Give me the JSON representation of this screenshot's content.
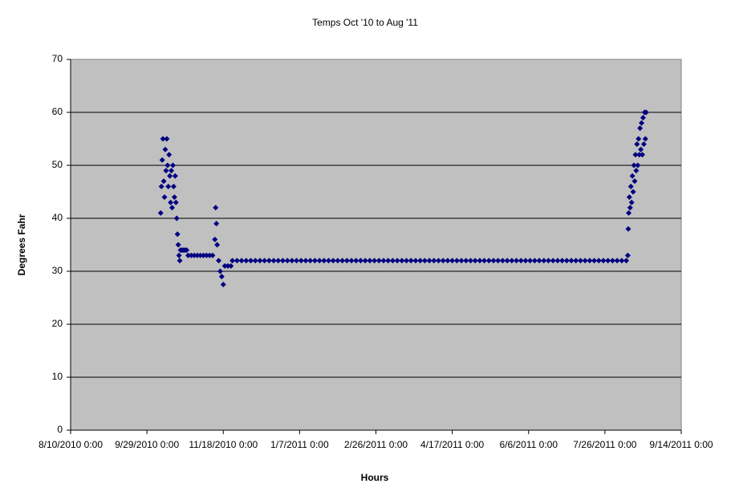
{
  "chart_data": {
    "type": "scatter",
    "title": "Temps Oct '10 to Aug '11",
    "x_label": "Hours",
    "y_label": "Degrees Fahr",
    "color": "#000080",
    "plot_background": "#c0c0c0",
    "grid": true,
    "xlim": [
      40400,
      40800
    ],
    "xticks": [
      {
        "value": 40400,
        "label": "8/10/2010 0:00"
      },
      {
        "value": 40450,
        "label": "9/29/2010 0:00"
      },
      {
        "value": 40500,
        "label": "11/18/2010 0:00"
      },
      {
        "value": 40550,
        "label": "1/7/2011 0:00"
      },
      {
        "value": 40600,
        "label": "2/26/2011 0:00"
      },
      {
        "value": 40650,
        "label": "4/17/2011 0:00"
      },
      {
        "value": 40700,
        "label": "6/6/2011 0:00"
      },
      {
        "value": 40750,
        "label": "7/26/2011 0:00"
      },
      {
        "value": 40800,
        "label": "9/14/2011 0:00"
      }
    ],
    "ylim": [
      0,
      70
    ],
    "yticks": [
      0,
      10,
      20,
      30,
      40,
      50,
      60,
      70
    ],
    "x": [
      40459,
      40459.5,
      40460,
      40460.5,
      40461,
      40461.5,
      40462,
      40462.5,
      40463,
      40463.5,
      40464,
      40464.5,
      40465,
      40465.5,
      40466,
      40466.5,
      40467,
      40467.5,
      40468,
      40468.5,
      40469,
      40469.5,
      40470,
      40470.5,
      40471,
      40471.5,
      40472,
      40473,
      40474,
      40475,
      40476,
      40477,
      40479,
      40481,
      40483,
      40485,
      40487,
      40489,
      40491,
      40493,
      40494.5,
      40495,
      40495.5,
      40496,
      40497,
      40498,
      40499,
      40500,
      40501,
      40503,
      40505,
      40506,
      40509,
      40512,
      40515,
      40518,
      40521,
      40524,
      40527,
      40530,
      40533,
      40536,
      40539,
      40542,
      40545,
      40548,
      40551,
      40554,
      40557,
      40560,
      40563,
      40566,
      40569,
      40572,
      40575,
      40578,
      40581,
      40584,
      40587,
      40590,
      40593,
      40596,
      40599,
      40602,
      40605,
      40608,
      40611,
      40614,
      40617,
      40620,
      40623,
      40626,
      40629,
      40632,
      40635,
      40638,
      40641,
      40644,
      40647,
      40650,
      40653,
      40656,
      40659,
      40662,
      40665,
      40668,
      40671,
      40674,
      40677,
      40680,
      40683,
      40686,
      40689,
      40692,
      40695,
      40698,
      40701,
      40704,
      40707,
      40710,
      40713,
      40716,
      40719,
      40722,
      40725,
      40728,
      40731,
      40734,
      40737,
      40740,
      40743,
      40746,
      40749,
      40752,
      40755,
      40758,
      40761,
      40764,
      40765,
      40765.3,
      40765.6,
      40766,
      40766.5,
      40767,
      40767.5,
      40768,
      40768.5,
      40769,
      40769.5,
      40770,
      40770.5,
      40771,
      40771.5,
      40772,
      40772.5,
      40773,
      40773.5,
      40774,
      40774.5,
      40775,
      40775.5,
      40776,
      40776.5,
      40777
    ],
    "values": [
      41,
      46,
      51,
      55,
      47,
      44,
      53,
      49,
      55,
      50,
      46,
      52,
      48,
      43,
      49,
      42,
      50,
      46,
      44,
      48,
      43,
      40,
      37,
      35,
      33,
      32,
      34,
      34,
      34,
      34,
      34,
      33,
      33,
      33,
      33,
      33,
      33,
      33,
      33,
      33,
      36,
      42,
      39,
      35,
      32,
      30,
      29,
      27.5,
      31,
      31,
      31,
      32,
      32,
      32,
      32,
      32,
      32,
      32,
      32,
      32,
      32,
      32,
      32,
      32,
      32,
      32,
      32,
      32,
      32,
      32,
      32,
      32,
      32,
      32,
      32,
      32,
      32,
      32,
      32,
      32,
      32,
      32,
      32,
      32,
      32,
      32,
      32,
      32,
      32,
      32,
      32,
      32,
      32,
      32,
      32,
      32,
      32,
      32,
      32,
      32,
      32,
      32,
      32,
      32,
      32,
      32,
      32,
      32,
      32,
      32,
      32,
      32,
      32,
      32,
      32,
      32,
      32,
      32,
      32,
      32,
      32,
      32,
      32,
      32,
      32,
      32,
      32,
      32,
      32,
      32,
      32,
      32,
      32,
      32,
      32,
      32,
      32,
      32,
      33,
      38,
      41,
      44,
      42,
      46,
      43,
      48,
      45,
      50,
      47,
      52,
      49,
      54,
      50,
      55,
      52,
      57,
      53,
      58,
      52,
      59,
      54,
      60,
      55,
      60
    ]
  }
}
